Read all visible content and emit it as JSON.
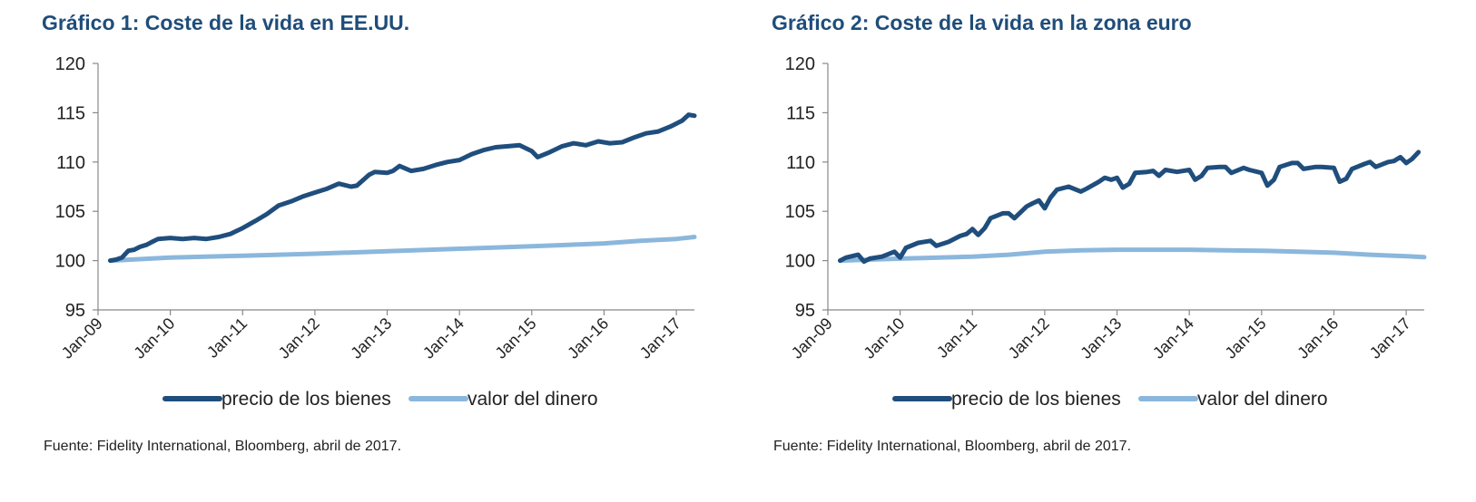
{
  "chart_data": [
    {
      "type": "line",
      "title": "Gráfico 1: Coste de la vida en EE.UU.",
      "source": "Fuente: Fidelity International, Bloomberg, abril de 2017.",
      "xlabel": "",
      "ylabel": "",
      "ylim": [
        95,
        120
      ],
      "yticks": [
        "95",
        "100",
        "105",
        "110",
        "115",
        "120"
      ],
      "xlim": [
        2009.0,
        2017.25
      ],
      "xticks": [
        "Jan-09",
        "Jan-10",
        "Jan-11",
        "Jan-12",
        "Jan-13",
        "Jan-14",
        "Jan-15",
        "Jan-16",
        "Jan-17"
      ],
      "grid": false,
      "legend_position": "bottom",
      "series": [
        {
          "name": "precio de los bienes",
          "color": "#1f4e7d",
          "points": [
            [
              2009.17,
              100.0
            ],
            [
              2009.25,
              100.1
            ],
            [
              2009.33,
              100.3
            ],
            [
              2009.42,
              101.0
            ],
            [
              2009.5,
              101.1
            ],
            [
              2009.58,
              101.4
            ],
            [
              2009.67,
              101.6
            ],
            [
              2009.75,
              101.9
            ],
            [
              2009.83,
              102.2
            ],
            [
              2010.0,
              102.3
            ],
            [
              2010.17,
              102.2
            ],
            [
              2010.33,
              102.3
            ],
            [
              2010.5,
              102.2
            ],
            [
              2010.67,
              102.4
            ],
            [
              2010.83,
              102.7
            ],
            [
              2011.0,
              103.3
            ],
            [
              2011.17,
              104.0
            ],
            [
              2011.33,
              104.7
            ],
            [
              2011.5,
              105.6
            ],
            [
              2011.67,
              106.0
            ],
            [
              2011.83,
              106.5
            ],
            [
              2012.0,
              106.9
            ],
            [
              2012.17,
              107.3
            ],
            [
              2012.33,
              107.8
            ],
            [
              2012.5,
              107.5
            ],
            [
              2012.58,
              107.6
            ],
            [
              2012.75,
              108.7
            ],
            [
              2012.83,
              109.0
            ],
            [
              2013.0,
              108.9
            ],
            [
              2013.08,
              109.1
            ],
            [
              2013.17,
              109.6
            ],
            [
              2013.33,
              109.1
            ],
            [
              2013.5,
              109.3
            ],
            [
              2013.67,
              109.7
            ],
            [
              2013.83,
              110.0
            ],
            [
              2014.0,
              110.2
            ],
            [
              2014.17,
              110.8
            ],
            [
              2014.33,
              111.2
            ],
            [
              2014.5,
              111.5
            ],
            [
              2014.67,
              111.6
            ],
            [
              2014.83,
              111.7
            ],
            [
              2015.0,
              111.1
            ],
            [
              2015.08,
              110.5
            ],
            [
              2015.25,
              111.0
            ],
            [
              2015.42,
              111.6
            ],
            [
              2015.58,
              111.9
            ],
            [
              2015.75,
              111.7
            ],
            [
              2015.92,
              112.1
            ],
            [
              2016.08,
              111.9
            ],
            [
              2016.25,
              112.0
            ],
            [
              2016.42,
              112.5
            ],
            [
              2016.58,
              112.9
            ],
            [
              2016.75,
              113.1
            ],
            [
              2016.92,
              113.6
            ],
            [
              2017.08,
              114.2
            ],
            [
              2017.17,
              114.8
            ],
            [
              2017.25,
              114.7
            ]
          ]
        },
        {
          "name": "valor del dinero",
          "color": "#8bb7dc",
          "points": [
            [
              2009.17,
              100.0
            ],
            [
              2010.0,
              100.3
            ],
            [
              2011.0,
              100.5
            ],
            [
              2012.0,
              100.7
            ],
            [
              2013.0,
              100.95
            ],
            [
              2014.0,
              101.2
            ],
            [
              2015.0,
              101.45
            ],
            [
              2015.5,
              101.6
            ],
            [
              2016.0,
              101.75
            ],
            [
              2016.5,
              102.0
            ],
            [
              2017.0,
              102.2
            ],
            [
              2017.25,
              102.4
            ]
          ]
        }
      ]
    },
    {
      "type": "line",
      "title": "Gráfico 2: Coste de la vida en la zona euro",
      "source": "Fuente: Fidelity International, Bloomberg, abril de 2017.",
      "xlabel": "",
      "ylabel": "",
      "ylim": [
        95,
        120
      ],
      "yticks": [
        "95",
        "100",
        "105",
        "110",
        "115",
        "120"
      ],
      "xlim": [
        2009.0,
        2017.25
      ],
      "xticks": [
        "Jan-09",
        "Jan-10",
        "Jan-11",
        "Jan-12",
        "Jan-13",
        "Jan-14",
        "Jan-15",
        "Jan-16",
        "Jan-17"
      ],
      "grid": false,
      "legend_position": "bottom",
      "series": [
        {
          "name": "precio de los bienes",
          "color": "#1f4e7d",
          "points": [
            [
              2009.17,
              100.0
            ],
            [
              2009.25,
              100.3
            ],
            [
              2009.42,
              100.6
            ],
            [
              2009.5,
              99.9
            ],
            [
              2009.58,
              100.2
            ],
            [
              2009.75,
              100.4
            ],
            [
              2009.92,
              100.9
            ],
            [
              2010.0,
              100.3
            ],
            [
              2010.08,
              101.3
            ],
            [
              2010.25,
              101.8
            ],
            [
              2010.42,
              102.0
            ],
            [
              2010.5,
              101.5
            ],
            [
              2010.67,
              101.9
            ],
            [
              2010.83,
              102.5
            ],
            [
              2010.92,
              102.7
            ],
            [
              2011.0,
              103.2
            ],
            [
              2011.08,
              102.6
            ],
            [
              2011.17,
              103.3
            ],
            [
              2011.25,
              104.3
            ],
            [
              2011.42,
              104.8
            ],
            [
              2011.5,
              104.8
            ],
            [
              2011.58,
              104.3
            ],
            [
              2011.75,
              105.5
            ],
            [
              2011.83,
              105.8
            ],
            [
              2011.92,
              106.1
            ],
            [
              2012.0,
              105.3
            ],
            [
              2012.08,
              106.4
            ],
            [
              2012.17,
              107.2
            ],
            [
              2012.33,
              107.5
            ],
            [
              2012.5,
              107.0
            ],
            [
              2012.58,
              107.3
            ],
            [
              2012.75,
              108.0
            ],
            [
              2012.83,
              108.4
            ],
            [
              2012.92,
              108.2
            ],
            [
              2013.0,
              108.4
            ],
            [
              2013.08,
              107.4
            ],
            [
              2013.17,
              107.8
            ],
            [
              2013.25,
              108.9
            ],
            [
              2013.42,
              109.0
            ],
            [
              2013.5,
              109.1
            ],
            [
              2013.58,
              108.6
            ],
            [
              2013.67,
              109.2
            ],
            [
              2013.83,
              109.0
            ],
            [
              2014.0,
              109.2
            ],
            [
              2014.08,
              108.2
            ],
            [
              2014.17,
              108.6
            ],
            [
              2014.25,
              109.4
            ],
            [
              2014.42,
              109.5
            ],
            [
              2014.5,
              109.5
            ],
            [
              2014.58,
              108.9
            ],
            [
              2014.75,
              109.4
            ],
            [
              2014.83,
              109.2
            ],
            [
              2015.0,
              108.9
            ],
            [
              2015.08,
              107.6
            ],
            [
              2015.17,
              108.2
            ],
            [
              2015.25,
              109.5
            ],
            [
              2015.42,
              109.9
            ],
            [
              2015.5,
              109.9
            ],
            [
              2015.58,
              109.3
            ],
            [
              2015.75,
              109.5
            ],
            [
              2015.83,
              109.5
            ],
            [
              2016.0,
              109.4
            ],
            [
              2016.08,
              108.0
            ],
            [
              2016.17,
              108.3
            ],
            [
              2016.25,
              109.3
            ],
            [
              2016.42,
              109.8
            ],
            [
              2016.5,
              110.0
            ],
            [
              2016.58,
              109.5
            ],
            [
              2016.75,
              110.0
            ],
            [
              2016.83,
              110.1
            ],
            [
              2016.92,
              110.5
            ],
            [
              2017.0,
              109.9
            ],
            [
              2017.08,
              110.3
            ],
            [
              2017.17,
              111.0
            ]
          ]
        },
        {
          "name": "valor del dinero",
          "color": "#8bb7dc",
          "points": [
            [
              2009.17,
              100.0
            ],
            [
              2010.0,
              100.2
            ],
            [
              2011.0,
              100.4
            ],
            [
              2011.5,
              100.6
            ],
            [
              2012.0,
              100.9
            ],
            [
              2012.5,
              101.05
            ],
            [
              2013.0,
              101.1
            ],
            [
              2014.0,
              101.1
            ],
            [
              2014.5,
              101.05
            ],
            [
              2015.0,
              101.0
            ],
            [
              2015.5,
              100.9
            ],
            [
              2016.0,
              100.8
            ],
            [
              2016.5,
              100.6
            ],
            [
              2017.0,
              100.45
            ],
            [
              2017.25,
              100.35
            ]
          ]
        }
      ]
    }
  ]
}
